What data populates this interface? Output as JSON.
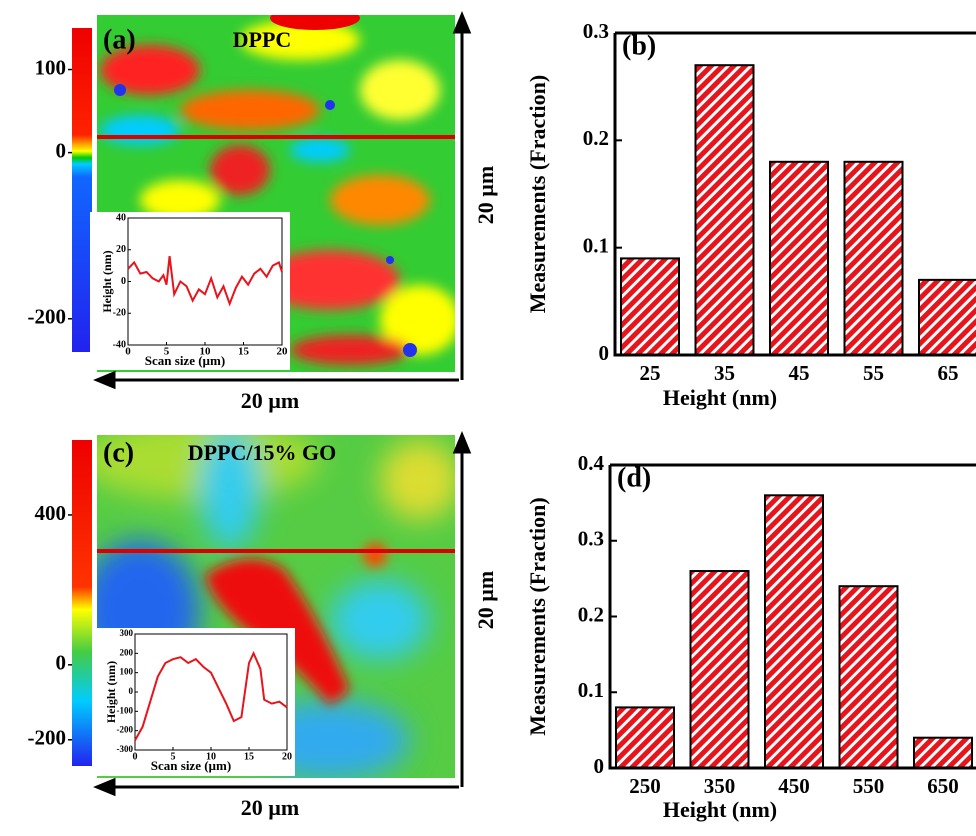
{
  "chart_data": [
    {
      "type": "afm-image",
      "label": "(a)",
      "title": "DPPC",
      "colorbar": {
        "clim": [
          -240,
          150
        ],
        "ticks": [
          100,
          0,
          -200
        ]
      },
      "x_scale_label": "20 µm",
      "y_scale_label": "20 µm"
    },
    {
      "type": "line",
      "xlabel": "Scan size (µm)",
      "ylabel": "Height (nm)",
      "xlim": [
        0,
        20
      ],
      "ylim": [
        -40,
        40
      ],
      "xticks": [
        0,
        5,
        10,
        15,
        20
      ],
      "yticks": [
        -40,
        -20,
        0,
        20,
        40
      ],
      "color": "#e8141b",
      "x": [
        0,
        0.8,
        1.6,
        2.4,
        3.2,
        4,
        4.6,
        5,
        5.4,
        6,
        6.8,
        7.6,
        8.4,
        9.2,
        10,
        10.8,
        11.6,
        12.4,
        13.2,
        14,
        14.8,
        15.6,
        16.4,
        17.2,
        18,
        18.8,
        19.6,
        20
      ],
      "values": [
        8,
        12,
        5,
        6,
        2,
        0,
        4,
        -2,
        16,
        -8,
        0,
        -3,
        -12,
        -5,
        -8,
        2,
        -10,
        -3,
        -14,
        -4,
        3,
        -2,
        5,
        8,
        3,
        10,
        12,
        6
      ]
    },
    {
      "type": "bar",
      "label": "(b)",
      "xlabel": "Height (nm)",
      "ylabel": "Measurements (Fraction)",
      "categories": [
        "25",
        "35",
        "45",
        "55",
        "65"
      ],
      "values": [
        0.09,
        0.27,
        0.18,
        0.18,
        0.07
      ],
      "ylim": [
        0,
        0.3
      ],
      "yticks": [
        0,
        0.1,
        0.2,
        0.3
      ],
      "color": "#e8141b"
    },
    {
      "type": "afm-image",
      "label": "(c)",
      "title": "DPPC/15% GO",
      "colorbar": {
        "clim": [
          -270,
          600
        ],
        "ticks": [
          400,
          0,
          -200
        ]
      },
      "x_scale_label": "20 µm",
      "y_scale_label": "20 µm"
    },
    {
      "type": "line",
      "xlabel": "Scan size (µm)",
      "ylabel": "Height (nm)",
      "xlim": [
        0,
        20
      ],
      "ylim": [
        -300,
        300
      ],
      "xticks": [
        0,
        5,
        10,
        15,
        20
      ],
      "yticks": [
        -300,
        -200,
        -100,
        0,
        100,
        200,
        300
      ],
      "color": "#e8141b",
      "x": [
        0,
        1,
        2,
        3,
        4,
        5,
        6,
        7,
        8,
        9,
        10,
        11,
        12,
        13,
        14,
        15,
        15.6,
        16.5,
        17,
        18,
        19,
        20
      ],
      "values": [
        -250,
        -180,
        -50,
        80,
        150,
        170,
        180,
        150,
        170,
        130,
        100,
        20,
        -60,
        -150,
        -130,
        150,
        200,
        120,
        -40,
        -60,
        -50,
        -80
      ]
    },
    {
      "type": "bar",
      "label": "(d)",
      "xlabel": "Height (nm)",
      "ylabel": "Measurements (Fraction)",
      "categories": [
        "250",
        "350",
        "450",
        "550",
        "650"
      ],
      "values": [
        0.08,
        0.26,
        0.36,
        0.24,
        0.04
      ],
      "ylim": [
        0,
        0.4
      ],
      "yticks": [
        0,
        0.1,
        0.2,
        0.3,
        0.4
      ],
      "color": "#e8141b"
    }
  ]
}
